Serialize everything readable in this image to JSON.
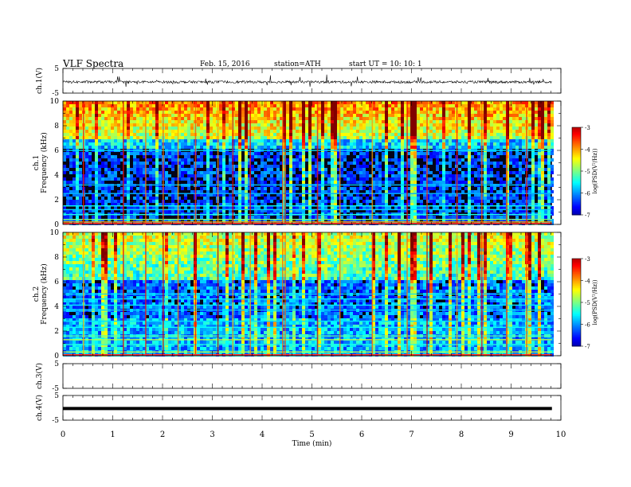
{
  "header": {
    "title": "VLF  Spectra",
    "date": "Feb. 15, 2016",
    "station": "station=ATH",
    "start": "start  UT  =    10: 10: 1"
  },
  "chart_data": [
    {
      "type": "line",
      "panel": "ch1-waveform",
      "ylabel": "ch.1(V)",
      "ylim": [
        -5,
        5
      ],
      "yticks": [
        "5",
        "-5"
      ],
      "xlim": [
        0,
        10
      ],
      "signal_level": -0.5
    },
    {
      "type": "heatmap",
      "panel": "ch1-spectrogram",
      "ylabel": "ch.1 Frequency  (kHz)",
      "ylim": [
        0,
        10
      ],
      "yticks": [
        "0",
        "2",
        "4",
        "6",
        "8",
        "10"
      ],
      "xlim": [
        0,
        10
      ],
      "colorbar": {
        "label": "log(PSD(V²/Hz))",
        "range": [
          -7,
          -3
        ],
        "ticks": [
          "-3",
          "-4",
          "-5",
          "-6",
          "-7"
        ]
      }
    },
    {
      "type": "heatmap",
      "panel": "ch2-spectrogram",
      "ylabel": "ch.2 Frequency  (kHz)",
      "ylim": [
        0,
        10
      ],
      "yticks": [
        "0",
        "2",
        "4",
        "6",
        "8",
        "10"
      ],
      "xlim": [
        0,
        10
      ],
      "colorbar": {
        "label": "log(PSD(V²/Hz))",
        "range": [
          -7,
          -3
        ],
        "ticks": [
          "-3",
          "-4",
          "-5",
          "-6",
          "-7"
        ]
      }
    },
    {
      "type": "line",
      "panel": "ch3-waveform",
      "ylabel": "ch.3(V)",
      "ylim": [
        -5,
        5
      ],
      "yticks": [
        "5",
        "-5"
      ],
      "xlim": [
        0,
        10
      ]
    },
    {
      "type": "line",
      "panel": "ch4-waveform",
      "ylabel": "ch.4(V)",
      "ylim": [
        -5,
        5
      ],
      "yticks": [
        "5",
        "-5"
      ],
      "xlim": [
        0,
        10
      ],
      "signal_level": -0.3
    }
  ],
  "xaxis": {
    "label": "Time  (min)",
    "ticks": [
      "0",
      "1",
      "2",
      "3",
      "4",
      "5",
      "6",
      "7",
      "8",
      "9",
      "10"
    ]
  },
  "colors": {
    "frame": "#000000"
  }
}
